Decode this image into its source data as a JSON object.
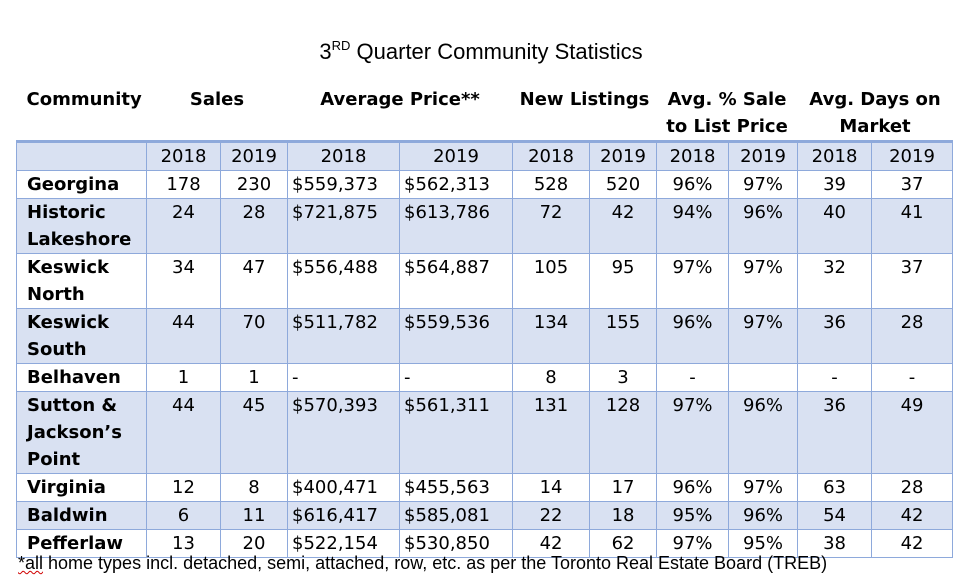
{
  "title": {
    "prefix": "3",
    "sup": "RD",
    "rest": " Quarter Community Statistics"
  },
  "headers": {
    "community": "Community",
    "sales": "Sales",
    "avg_price": "Average Price**",
    "new_listings": "New Listings",
    "sale_to_list": "Avg. % Sale to List Price",
    "days_on_market": "Avg. Days on Market"
  },
  "years": [
    "2018",
    "2019",
    "2018",
    "2019",
    "2018",
    "2019",
    "2018",
    "2019",
    "2018",
    "2019"
  ],
  "rows": [
    {
      "name": "Georgina",
      "cells": [
        "178",
        "230",
        "$559,373",
        "$562,313",
        "528",
        "520",
        "96%",
        "97%",
        "39",
        "37"
      ]
    },
    {
      "name": "Historic Lakeshore",
      "cells": [
        "24",
        "28",
        "$721,875",
        "$613,786",
        "72",
        "42",
        "94%",
        "96%",
        "40",
        "41"
      ]
    },
    {
      "name": "Keswick North",
      "cells": [
        "34",
        "47",
        "$556,488",
        "$564,887",
        "105",
        "95",
        "97%",
        "97%",
        "32",
        "37"
      ]
    },
    {
      "name": "Keswick South",
      "cells": [
        "44",
        "70",
        "$511,782",
        "$559,536",
        "134",
        "155",
        "96%",
        "97%",
        "36",
        "28"
      ]
    },
    {
      "name": "Belhaven",
      "cells": [
        "1",
        "1",
        "-",
        "-",
        "8",
        "3",
        "-",
        "",
        "-",
        "-"
      ]
    },
    {
      "name": "Sutton & Jackson’s Point",
      "cells": [
        "44",
        "45",
        "$570,393",
        "$561,311",
        "131",
        "128",
        "97%",
        "96%",
        "36",
        "49"
      ]
    },
    {
      "name": "Virginia",
      "cells": [
        "12",
        "8",
        "$400,471",
        "$455,563",
        "14",
        "17",
        "96%",
        "97%",
        "63",
        "28"
      ]
    },
    {
      "name": "Baldwin",
      "cells": [
        "6",
        "11",
        "$616,417",
        "$585,081",
        "22",
        "18",
        "95%",
        "96%",
        "54",
        "42"
      ]
    },
    {
      "name": "Pefferlaw",
      "cells": [
        "13",
        "20",
        "$522,154",
        "$530,850",
        "42",
        "62",
        "97%",
        "95%",
        "38",
        "42"
      ]
    }
  ],
  "footnote": "*all home types incl. detached, semi, attached, row, etc. as per the Toronto Real Estate Board (TREB)"
}
